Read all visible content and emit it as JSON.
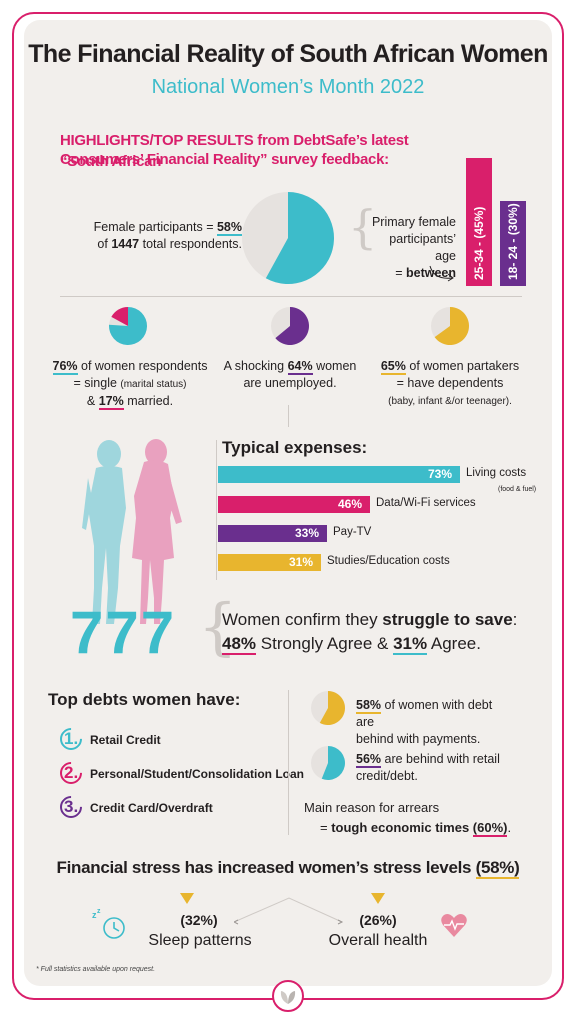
{
  "header": {
    "title": "The Financial Reality of South African Women",
    "subtitle": "National Women’s Month 2022"
  },
  "highlights": {
    "line1": "HIGHLIGHTS/TOP RESULTS from DebtSafe’s latest “South African",
    "line2": "Consumers’ Financial Reality” survey feedback:"
  },
  "participants": {
    "pre": "Female participants = ",
    "pct": "58%",
    "of": "of ",
    "count": "1447",
    "post": " total respondents.",
    "pie_value": 58
  },
  "age": {
    "line1": "Primary female",
    "line2": "participants’ age",
    "eq": "= ",
    "between": "between",
    "bar1": "25-34 - (45%)",
    "bar2": "18- 24 - (30%)",
    "bar1_value": 45,
    "bar2_value": 30
  },
  "stats": {
    "single": {
      "pct": "76%",
      "text1": " of women respondents",
      "text2": "= single ",
      "text2b": "(marital status)",
      "text3": "& ",
      "pct2": "17%",
      "text4": " married.",
      "pie_value": 76,
      "pie_value2": 17
    },
    "unemployed": {
      "text1": "A shocking ",
      "pct": "64%",
      "text2": " women",
      "text3": "are unemployed.",
      "pie_value": 64
    },
    "dependents": {
      "pct": "65%",
      "text1": " of women partakers",
      "text2": "= have dependents",
      "text3": "(baby, infant &/or teenager).",
      "pie_value": 65
    }
  },
  "expenses": {
    "title": "Typical expenses:",
    "items": [
      {
        "pct": "73%",
        "label": "Living costs",
        "sub": "(food & fuel)",
        "value": 73,
        "color": "#3dbcca"
      },
      {
        "pct": "46%",
        "label": "Data/Wi-Fi services",
        "sub": "",
        "value": 46,
        "color": "#d91f6b"
      },
      {
        "pct": "33%",
        "label": "Pay-TV",
        "sub": "",
        "value": 33,
        "color": "#6a2f8e"
      },
      {
        "pct": "31%",
        "label": "Studies/Education costs",
        "sub": "",
        "value": 31,
        "color": "#e8b52e"
      }
    ]
  },
  "savings": {
    "number": "777",
    "line1a": "Women confirm they ",
    "line1b": "struggle to save",
    "line1c": ":",
    "pct1": "48%",
    "line2a": " Strongly Agree & ",
    "pct2": "31%",
    "line2b": " Agree."
  },
  "debts": {
    "title": "Top debts women have:",
    "items": [
      {
        "num": "1.",
        "label": "Retail Credit",
        "color": "#3dbcca"
      },
      {
        "num": "2.",
        "label": "Personal/Student/Consolidation Loan",
        "color": "#d91f6b"
      },
      {
        "num": "3.",
        "label": "Credit Card/Overdraft",
        "color": "#6a2f8e"
      }
    ]
  },
  "arrears": {
    "a1_pct": "58%",
    "a1_text1": " of women with debt are",
    "a1_text2": "behind with payments.",
    "a1_value": 58,
    "a2_pct": "56%",
    "a2_text1": " are behind with retail",
    "a2_text2": "credit/debt.",
    "a2_value": 56,
    "reason1": "Main reason for arrears",
    "reason2a": "= ",
    "reason2b": "tough economic times ",
    "reason2c": "(60%)",
    "reason2d": "."
  },
  "stress": {
    "title_a": "Financial stress has increased women’s stress levels ",
    "title_b": "(58%)",
    "sleep_pct": "(32%)",
    "sleep_label": "Sleep patterns",
    "health_pct": "(26%)",
    "health_label": "Overall health"
  },
  "footnote": "* Full statistics available upon request.",
  "colors": {
    "pink": "#d91f6b",
    "teal": "#3dbcca",
    "purple": "#6a2f8e",
    "yellow": "#e8b52e"
  }
}
